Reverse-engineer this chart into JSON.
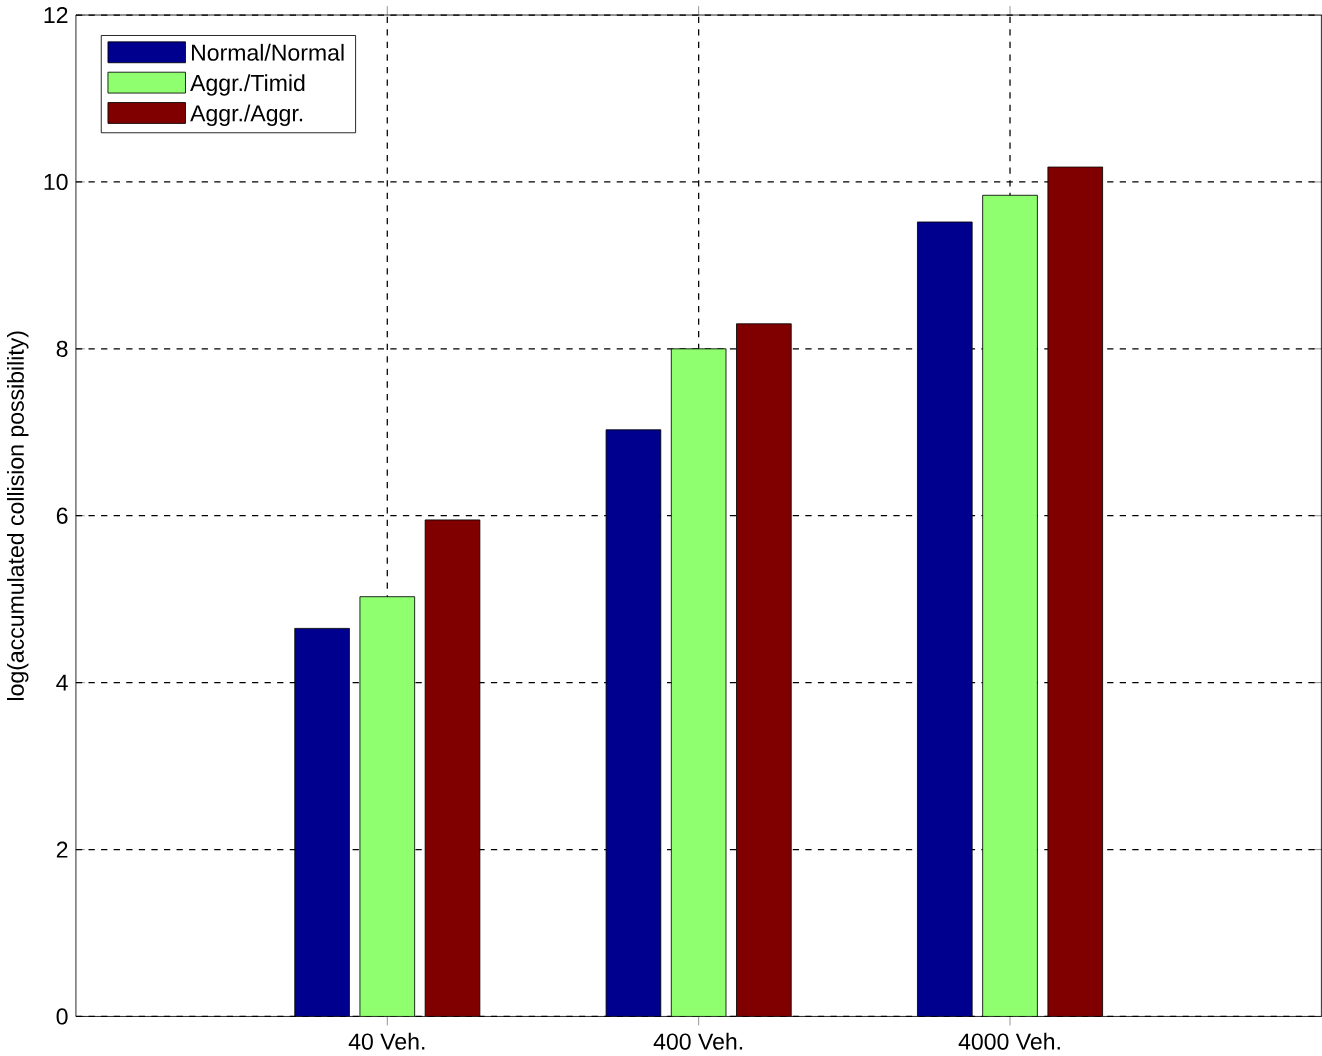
{
  "chart_data": {
    "type": "bar",
    "ylabel": "log(accumulated collision possibility)",
    "categories": [
      "40 Veh.",
      "400 Veh.",
      "4000 Veh."
    ],
    "series": [
      {
        "name": "Normal/Normal",
        "color": "#00008f",
        "values": [
          4.65,
          7.03,
          9.52
        ]
      },
      {
        "name": "Aggr./Timid",
        "color": "#8fff70",
        "values": [
          5.03,
          8.0,
          9.84
        ]
      },
      {
        "name": "Aggr./Aggr.",
        "color": "#800000",
        "values": [
          5.95,
          8.3,
          10.18
        ]
      }
    ],
    "ylim": [
      0,
      12
    ],
    "yticks": [
      0,
      2,
      4,
      6,
      8,
      10,
      12
    ],
    "grid": true,
    "legend": "top left"
  }
}
